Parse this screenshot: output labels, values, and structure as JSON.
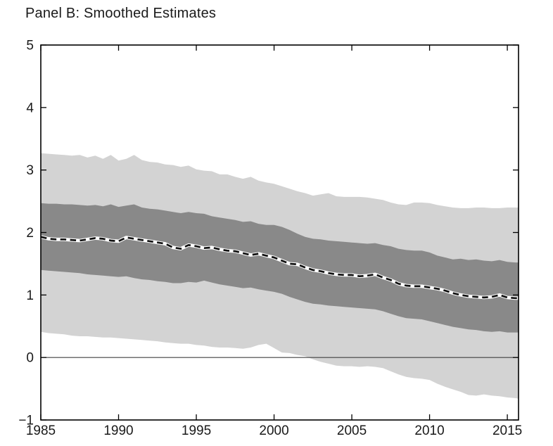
{
  "title": "Panel B: Smoothed Estimates",
  "colors": {
    "background": "#ffffff",
    "outer_band": "#d3d3d3",
    "inner_band": "#898989",
    "center_line_dash": "#111111",
    "center_line_halo": "#ffffff",
    "zero_line": "#404040",
    "axis": "#000000",
    "text": "#1a1a1a"
  },
  "chart_data": {
    "type": "area",
    "title": "Panel B: Smoothed Estimates",
    "xlabel": "",
    "ylabel": "",
    "xlim": [
      1985,
      2015.72
    ],
    "ylim": [
      -1,
      5
    ],
    "grid": false,
    "legend_position": "none",
    "zero_line": true,
    "x_tick_values": [
      1985,
      1990,
      1995,
      2000,
      2005,
      2010,
      2015
    ],
    "x_tick_labels": [
      "1985",
      "1990",
      "1995",
      "2000",
      "2005",
      "2010",
      "2015"
    ],
    "y_tick_values": [
      -1,
      0,
      1,
      2,
      3,
      4,
      5
    ],
    "y_tick_labels": [
      "−1",
      "0",
      "1",
      "2",
      "3",
      "4",
      "5"
    ],
    "x": [
      1985,
      1985.5,
      1986,
      1986.5,
      1987,
      1987.5,
      1988,
      1988.5,
      1989,
      1989.5,
      1990,
      1990.5,
      1991,
      1991.5,
      1992,
      1992.5,
      1993,
      1993.5,
      1994,
      1994.5,
      1995,
      1995.5,
      1996,
      1996.5,
      1997,
      1997.5,
      1998,
      1998.5,
      1999,
      1999.5,
      2000,
      2000.5,
      2001,
      2001.5,
      2002,
      2002.5,
      2003,
      2003.5,
      2004,
      2004.5,
      2005,
      2005.5,
      2006,
      2006.5,
      2007,
      2007.5,
      2008,
      2008.5,
      2009,
      2009.5,
      2010,
      2010.5,
      2011,
      2011.5,
      2012,
      2012.5,
      2013,
      2013.5,
      2014,
      2014.5,
      2015,
      2015.5,
      2015.72
    ],
    "series": [
      {
        "name": "outer-band-upper-edge",
        "role": "band-outer-upper",
        "values": [
          3.27,
          3.26,
          3.25,
          3.24,
          3.23,
          3.24,
          3.2,
          3.23,
          3.18,
          3.24,
          3.15,
          3.18,
          3.24,
          3.16,
          3.13,
          3.12,
          3.09,
          3.08,
          3.05,
          3.07,
          3.01,
          2.99,
          2.98,
          2.93,
          2.93,
          2.89,
          2.86,
          2.89,
          2.83,
          2.8,
          2.78,
          2.74,
          2.7,
          2.66,
          2.63,
          2.59,
          2.61,
          2.63,
          2.58,
          2.57,
          2.57,
          2.57,
          2.56,
          2.54,
          2.52,
          2.48,
          2.45,
          2.44,
          2.48,
          2.48,
          2.47,
          2.44,
          2.42,
          2.4,
          2.39,
          2.39,
          2.4,
          2.4,
          2.39,
          2.39,
          2.4,
          2.4,
          2.4
        ]
      },
      {
        "name": "inner-band-upper-edge",
        "role": "band-inner-upper",
        "values": [
          2.47,
          2.46,
          2.46,
          2.45,
          2.45,
          2.44,
          2.43,
          2.44,
          2.42,
          2.45,
          2.41,
          2.43,
          2.45,
          2.4,
          2.38,
          2.37,
          2.35,
          2.33,
          2.31,
          2.33,
          2.31,
          2.3,
          2.26,
          2.24,
          2.22,
          2.2,
          2.17,
          2.18,
          2.14,
          2.12,
          2.12,
          2.09,
          2.04,
          1.98,
          1.93,
          1.9,
          1.89,
          1.87,
          1.86,
          1.85,
          1.84,
          1.83,
          1.82,
          1.83,
          1.8,
          1.78,
          1.74,
          1.72,
          1.71,
          1.71,
          1.68,
          1.63,
          1.6,
          1.57,
          1.58,
          1.56,
          1.57,
          1.55,
          1.54,
          1.56,
          1.53,
          1.52,
          1.52
        ]
      },
      {
        "name": "smoothed-estimate",
        "role": "center-line",
        "values": [
          1.93,
          1.9,
          1.89,
          1.89,
          1.88,
          1.87,
          1.89,
          1.91,
          1.9,
          1.87,
          1.86,
          1.92,
          1.9,
          1.88,
          1.86,
          1.84,
          1.82,
          1.76,
          1.74,
          1.8,
          1.78,
          1.75,
          1.76,
          1.73,
          1.71,
          1.7,
          1.67,
          1.64,
          1.66,
          1.63,
          1.6,
          1.55,
          1.5,
          1.49,
          1.44,
          1.4,
          1.38,
          1.35,
          1.33,
          1.32,
          1.32,
          1.3,
          1.31,
          1.33,
          1.28,
          1.24,
          1.18,
          1.15,
          1.14,
          1.14,
          1.12,
          1.1,
          1.07,
          1.03,
          1.0,
          0.98,
          0.97,
          0.96,
          0.97,
          1.0,
          0.96,
          0.95,
          0.95
        ]
      },
      {
        "name": "inner-band-lower-edge",
        "role": "band-inner-lower",
        "values": [
          1.4,
          1.39,
          1.38,
          1.37,
          1.36,
          1.35,
          1.33,
          1.32,
          1.31,
          1.3,
          1.29,
          1.3,
          1.27,
          1.25,
          1.24,
          1.22,
          1.21,
          1.19,
          1.19,
          1.21,
          1.2,
          1.23,
          1.2,
          1.17,
          1.15,
          1.13,
          1.11,
          1.12,
          1.09,
          1.07,
          1.05,
          1.02,
          0.97,
          0.93,
          0.89,
          0.86,
          0.85,
          0.83,
          0.82,
          0.81,
          0.8,
          0.79,
          0.78,
          0.77,
          0.74,
          0.7,
          0.66,
          0.63,
          0.62,
          0.61,
          0.58,
          0.55,
          0.52,
          0.49,
          0.47,
          0.45,
          0.44,
          0.42,
          0.41,
          0.42,
          0.4,
          0.4,
          0.4
        ]
      },
      {
        "name": "outer-band-lower-edge",
        "role": "band-outer-lower",
        "values": [
          0.41,
          0.39,
          0.38,
          0.37,
          0.35,
          0.34,
          0.34,
          0.33,
          0.32,
          0.32,
          0.31,
          0.3,
          0.29,
          0.28,
          0.27,
          0.26,
          0.24,
          0.23,
          0.22,
          0.22,
          0.2,
          0.19,
          0.17,
          0.16,
          0.16,
          0.15,
          0.14,
          0.16,
          0.2,
          0.22,
          0.15,
          0.08,
          0.07,
          0.04,
          0.02,
          -0.03,
          -0.07,
          -0.1,
          -0.13,
          -0.14,
          -0.14,
          -0.15,
          -0.14,
          -0.15,
          -0.17,
          -0.22,
          -0.27,
          -0.31,
          -0.33,
          -0.34,
          -0.36,
          -0.42,
          -0.47,
          -0.51,
          -0.55,
          -0.6,
          -0.61,
          -0.59,
          -0.61,
          -0.62,
          -0.64,
          -0.65,
          -0.66
        ]
      }
    ]
  }
}
